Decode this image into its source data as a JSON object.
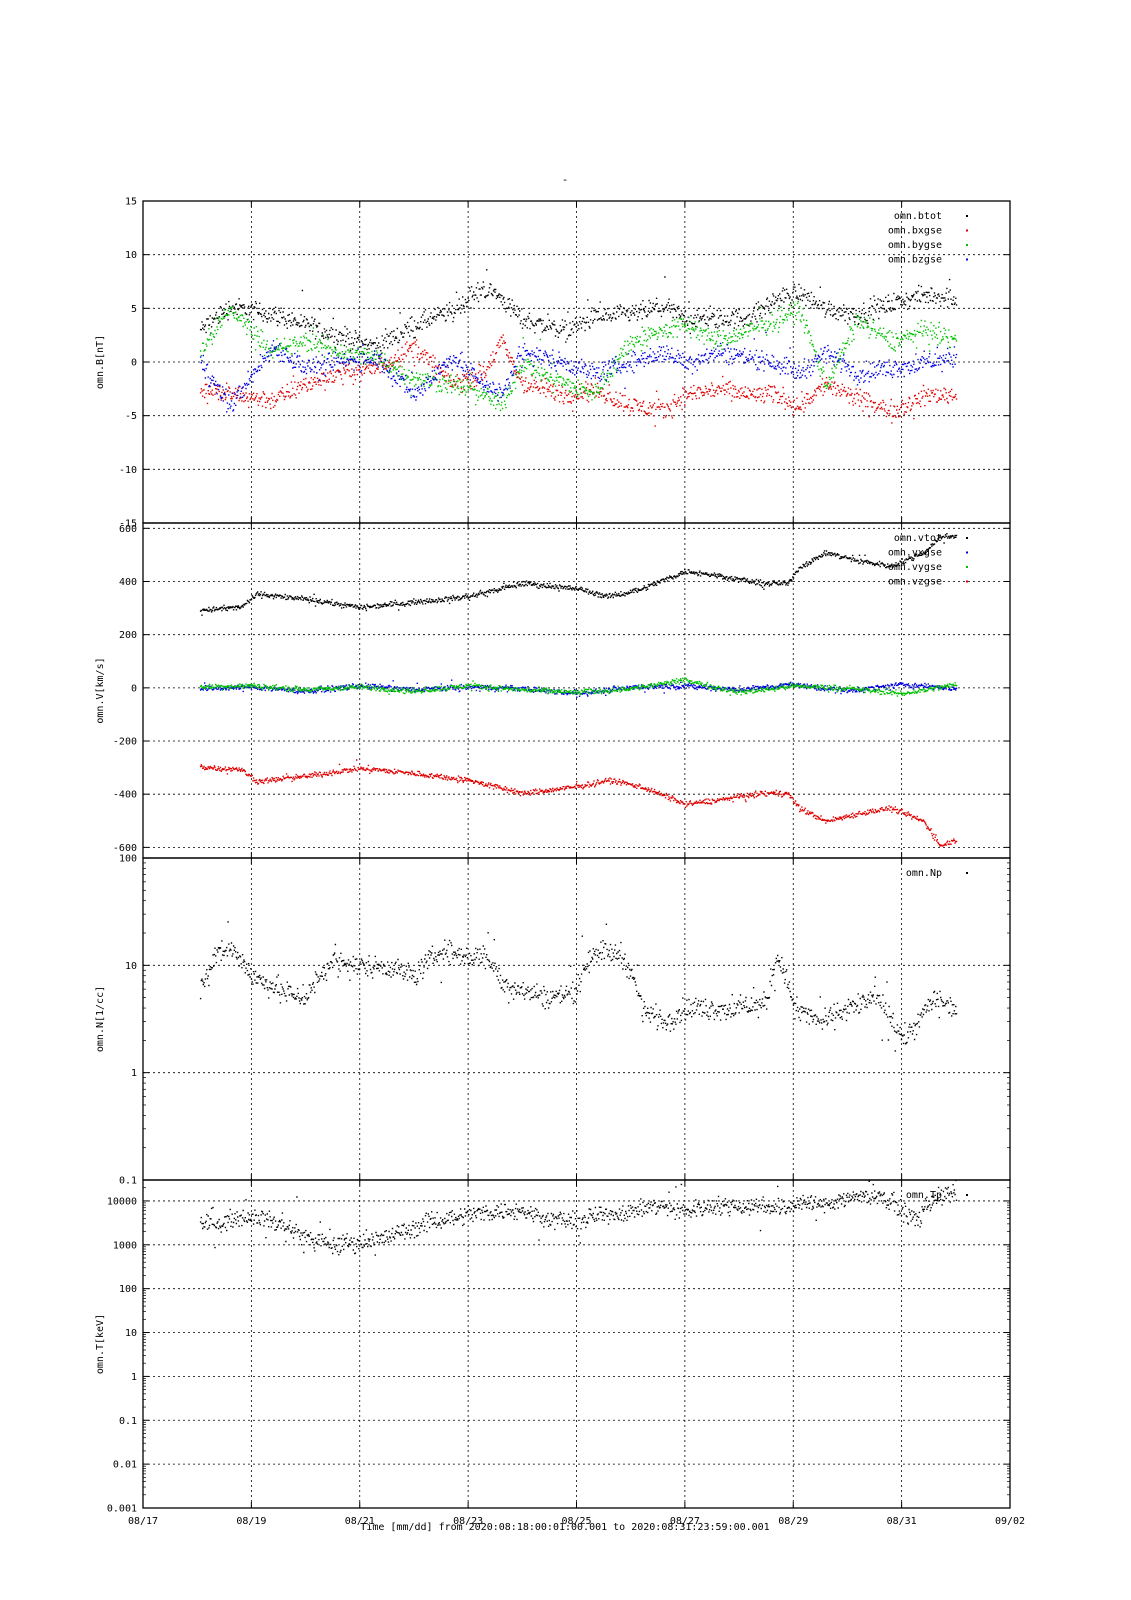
{
  "title": "-",
  "x_axis": {
    "label": "Time [mm/dd]  from 2020:08:18:00:01:00.001  to  2020:08:31:23:59:00.001",
    "ticks": [
      {
        "day": 0,
        "label": "08/17"
      },
      {
        "day": 2,
        "label": "08/19"
      },
      {
        "day": 4,
        "label": "08/21"
      },
      {
        "day": 6,
        "label": "08/23"
      },
      {
        "day": 8,
        "label": "08/25"
      },
      {
        "day": 10,
        "label": "08/27"
      },
      {
        "day": 12,
        "label": "08/29"
      },
      {
        "day": 14,
        "label": "08/31"
      },
      {
        "day": 16,
        "label": "09/02"
      }
    ]
  },
  "chart_data": [
    {
      "type": "scatter",
      "ylabel": "omn.B[nT]",
      "ylim": [
        -15,
        15
      ],
      "yscale": "linear",
      "yticks": [
        -15,
        -10,
        -5,
        0,
        5,
        10,
        15
      ],
      "grid": true,
      "legend_position": "top-right",
      "series": [
        {
          "name": "omn.btot",
          "color": "#000000",
          "keys": [
            [
              1.05,
              3
            ],
            [
              1.6,
              5.2
            ],
            [
              2.4,
              4.5
            ],
            [
              3,
              3.5
            ],
            [
              3.6,
              2.5
            ],
            [
              4.3,
              1.5
            ],
            [
              5,
              3.5
            ],
            [
              5.7,
              4.8
            ],
            [
              6.3,
              7
            ],
            [
              6.6,
              6
            ],
            [
              7,
              4
            ],
            [
              7.8,
              3
            ],
            [
              8.3,
              4.2
            ],
            [
              9,
              4.5
            ],
            [
              9.6,
              5.2
            ],
            [
              10,
              4.2
            ],
            [
              10.6,
              4
            ],
            [
              11.2,
              4.2
            ],
            [
              11.7,
              6
            ],
            [
              12.1,
              6.5
            ],
            [
              12.6,
              5
            ],
            [
              13.2,
              4.5
            ],
            [
              13.8,
              5.5
            ],
            [
              14.5,
              6.3
            ],
            [
              15,
              6
            ]
          ]
        },
        {
          "name": "omn.bxgse",
          "color": "#e00000",
          "keys": [
            [
              1.05,
              -2.5
            ],
            [
              1.6,
              -3
            ],
            [
              2.4,
              -3.5
            ],
            [
              3,
              -2
            ],
            [
              3.6,
              -1
            ],
            [
              4.3,
              -0.5
            ],
            [
              5,
              1.5
            ],
            [
              5.7,
              -2
            ],
            [
              6.3,
              -1
            ],
            [
              6.6,
              2
            ],
            [
              7,
              -2
            ],
            [
              7.8,
              -3
            ],
            [
              8.3,
              -2.5
            ],
            [
              9,
              -4
            ],
            [
              9.6,
              -4.5
            ],
            [
              10,
              -3
            ],
            [
              10.6,
              -2.5
            ],
            [
              11.2,
              -3
            ],
            [
              11.7,
              -3
            ],
            [
              12.1,
              -4
            ],
            [
              12.6,
              -2
            ],
            [
              13.2,
              -3.5
            ],
            [
              13.8,
              -4.5
            ],
            [
              14.5,
              -3
            ],
            [
              15,
              -3
            ]
          ]
        },
        {
          "name": "omn.bygse",
          "color": "#00c000",
          "keys": [
            [
              1.05,
              1
            ],
            [
              1.6,
              5
            ],
            [
              2.4,
              1
            ],
            [
              3,
              2
            ],
            [
              3.6,
              1
            ],
            [
              4.3,
              0.5
            ],
            [
              5,
              -1.5
            ],
            [
              5.7,
              -2
            ],
            [
              6.3,
              -3
            ],
            [
              6.6,
              -4
            ],
            [
              7,
              0
            ],
            [
              7.8,
              -2
            ],
            [
              8.3,
              -3
            ],
            [
              9,
              2
            ],
            [
              9.6,
              3
            ],
            [
              10,
              3.5
            ],
            [
              10.6,
              2
            ],
            [
              11.2,
              3
            ],
            [
              11.7,
              4
            ],
            [
              12.1,
              5
            ],
            [
              12.6,
              -2
            ],
            [
              13.2,
              4
            ],
            [
              13.8,
              2
            ],
            [
              14.5,
              3
            ],
            [
              15,
              2
            ]
          ]
        },
        {
          "name": "omn.bzgse",
          "color": "#0000e0",
          "keys": [
            [
              1.05,
              0
            ],
            [
              1.6,
              -4
            ],
            [
              2.4,
              1.5
            ],
            [
              3,
              -0.5
            ],
            [
              3.6,
              0
            ],
            [
              4.3,
              0.5
            ],
            [
              5,
              -3
            ],
            [
              5.7,
              0.5
            ],
            [
              6.3,
              -2
            ],
            [
              6.6,
              -3
            ],
            [
              7,
              1
            ],
            [
              7.8,
              0
            ],
            [
              8.3,
              -1
            ],
            [
              9,
              0
            ],
            [
              9.6,
              1
            ],
            [
              10,
              0
            ],
            [
              10.6,
              1
            ],
            [
              11.2,
              0.5
            ],
            [
              11.7,
              0
            ],
            [
              12.1,
              -1
            ],
            [
              12.6,
              1
            ],
            [
              13.2,
              -1
            ],
            [
              13.8,
              -0.5
            ],
            [
              14.5,
              0
            ],
            [
              15,
              0.5
            ]
          ]
        }
      ]
    },
    {
      "type": "scatter",
      "ylabel": "omn.V[km/s]",
      "ylim": [
        -640,
        620
      ],
      "yscale": "linear",
      "yticks": [
        -600,
        -400,
        -200,
        0,
        200,
        400,
        600
      ],
      "grid": true,
      "legend_position": "top-right",
      "series": [
        {
          "name": "omn.vtot",
          "color": "#000000",
          "keys": [
            [
              1.05,
              295
            ],
            [
              1.8,
              305
            ],
            [
              2.1,
              355
            ],
            [
              3,
              335
            ],
            [
              4,
              305
            ],
            [
              5,
              325
            ],
            [
              6,
              345
            ],
            [
              7,
              395
            ],
            [
              8,
              375
            ],
            [
              8.6,
              345
            ],
            [
              9.2,
              375
            ],
            [
              10,
              440
            ],
            [
              10.6,
              425
            ],
            [
              11.4,
              395
            ],
            [
              11.9,
              395
            ],
            [
              12.1,
              455
            ],
            [
              12.6,
              510
            ],
            [
              13.2,
              480
            ],
            [
              13.8,
              460
            ],
            [
              14.4,
              510
            ],
            [
              14.7,
              570
            ],
            [
              15,
              575
            ]
          ]
        },
        {
          "name": "omn.vxgse",
          "color": "#0000e0",
          "keys": [
            [
              1.05,
              0
            ],
            [
              2,
              5
            ],
            [
              3,
              -10
            ],
            [
              4,
              10
            ],
            [
              5,
              -5
            ],
            [
              6,
              5
            ],
            [
              7,
              0
            ],
            [
              8,
              -20
            ],
            [
              9,
              5
            ],
            [
              10,
              10
            ],
            [
              11,
              -5
            ],
            [
              12,
              15
            ],
            [
              13,
              -10
            ],
            [
              14,
              15
            ],
            [
              15,
              0
            ]
          ]
        },
        {
          "name": "omn.vygse",
          "color": "#00c000",
          "keys": [
            [
              1.05,
              5
            ],
            [
              2,
              10
            ],
            [
              3,
              -5
            ],
            [
              4,
              5
            ],
            [
              5,
              -10
            ],
            [
              6,
              10
            ],
            [
              7,
              -5
            ],
            [
              8,
              -15
            ],
            [
              9,
              0
            ],
            [
              10,
              30
            ],
            [
              11,
              -15
            ],
            [
              12,
              10
            ],
            [
              13,
              0
            ],
            [
              14,
              -20
            ],
            [
              15,
              15
            ]
          ]
        },
        {
          "name": "omn.vzgse",
          "color": "#e00000",
          "keys": [
            [
              1.05,
              -295
            ],
            [
              1.8,
              -305
            ],
            [
              2.1,
              -350
            ],
            [
              3,
              -330
            ],
            [
              4,
              -300
            ],
            [
              5,
              -320
            ],
            [
              6,
              -345
            ],
            [
              7,
              -395
            ],
            [
              8,
              -370
            ],
            [
              8.6,
              -345
            ],
            [
              9.2,
              -370
            ],
            [
              10,
              -435
            ],
            [
              10.6,
              -420
            ],
            [
              11.4,
              -395
            ],
            [
              11.9,
              -395
            ],
            [
              12.1,
              -450
            ],
            [
              12.6,
              -500
            ],
            [
              13.2,
              -470
            ],
            [
              13.8,
              -450
            ],
            [
              14.4,
              -500
            ],
            [
              14.7,
              -590
            ],
            [
              15,
              -570
            ]
          ]
        }
      ]
    },
    {
      "type": "scatter",
      "ylabel": "omn.N[1/cc]",
      "ylim": [
        0.1,
        100
      ],
      "yscale": "log",
      "yticks": [
        0.1,
        1,
        10,
        100
      ],
      "yticklabels": [
        "0.1",
        "1",
        "10",
        "100"
      ],
      "grid": true,
      "legend_position": "top-right",
      "series": [
        {
          "name": "omn.Np",
          "color": "#000000",
          "keys": [
            [
              1.05,
              6
            ],
            [
              1.3,
              12
            ],
            [
              1.6,
              15
            ],
            [
              2,
              8
            ],
            [
              2.5,
              6
            ],
            [
              3,
              5
            ],
            [
              3.5,
              11
            ],
            [
              4,
              10
            ],
            [
              4.5,
              10
            ],
            [
              5,
              8
            ],
            [
              5.5,
              14
            ],
            [
              6,
              12
            ],
            [
              6.3,
              13
            ],
            [
              6.6,
              7
            ],
            [
              7,
              6
            ],
            [
              7.5,
              5
            ],
            [
              8,
              6
            ],
            [
              8.3,
              14
            ],
            [
              8.8,
              13
            ],
            [
              9.2,
              4
            ],
            [
              9.6,
              3
            ],
            [
              10,
              4
            ],
            [
              10.5,
              4
            ],
            [
              11,
              4
            ],
            [
              11.5,
              4.5
            ],
            [
              11.7,
              12
            ],
            [
              12,
              4
            ],
            [
              12.5,
              3
            ],
            [
              13,
              4
            ],
            [
              13.5,
              5
            ],
            [
              14,
              2
            ],
            [
              14.3,
              3
            ],
            [
              14.6,
              5
            ],
            [
              15,
              4
            ]
          ]
        }
      ]
    },
    {
      "type": "scatter",
      "ylabel": "omn.T[keV]",
      "ylim": [
        0.001,
        30000
      ],
      "yscale": "log",
      "yticks": [
        0.001,
        0.01,
        0.1,
        1,
        10,
        100,
        1000,
        10000
      ],
      "yticklabels": [
        "0.001",
        "0.01",
        "0.1",
        "1",
        "10",
        "100",
        "1000",
        "10000"
      ],
      "grid": true,
      "legend_position": "top-right",
      "series": [
        {
          "name": "omn.Tp",
          "color": "#000000",
          "keys": [
            [
              1.05,
              3000
            ],
            [
              1.5,
              3500
            ],
            [
              2,
              5000
            ],
            [
              2.5,
              3000
            ],
            [
              3,
              1500
            ],
            [
              3.5,
              1000
            ],
            [
              4,
              1200
            ],
            [
              4.5,
              1500
            ],
            [
              5,
              2500
            ],
            [
              5.5,
              4000
            ],
            [
              6,
              5000
            ],
            [
              6.5,
              6000
            ],
            [
              7,
              6000
            ],
            [
              7.5,
              4000
            ],
            [
              8,
              3500
            ],
            [
              8.5,
              5000
            ],
            [
              9,
              6000
            ],
            [
              9.5,
              8000
            ],
            [
              10,
              6000
            ],
            [
              10.5,
              8000
            ],
            [
              11,
              8000
            ],
            [
              11.5,
              8000
            ],
            [
              11.9,
              7000
            ],
            [
              12.1,
              10000
            ],
            [
              12.5,
              8000
            ],
            [
              13,
              12000
            ],
            [
              13.5,
              15000
            ],
            [
              14,
              6000
            ],
            [
              14.3,
              3500
            ],
            [
              14.6,
              12000
            ],
            [
              15,
              15000
            ]
          ]
        }
      ]
    }
  ]
}
